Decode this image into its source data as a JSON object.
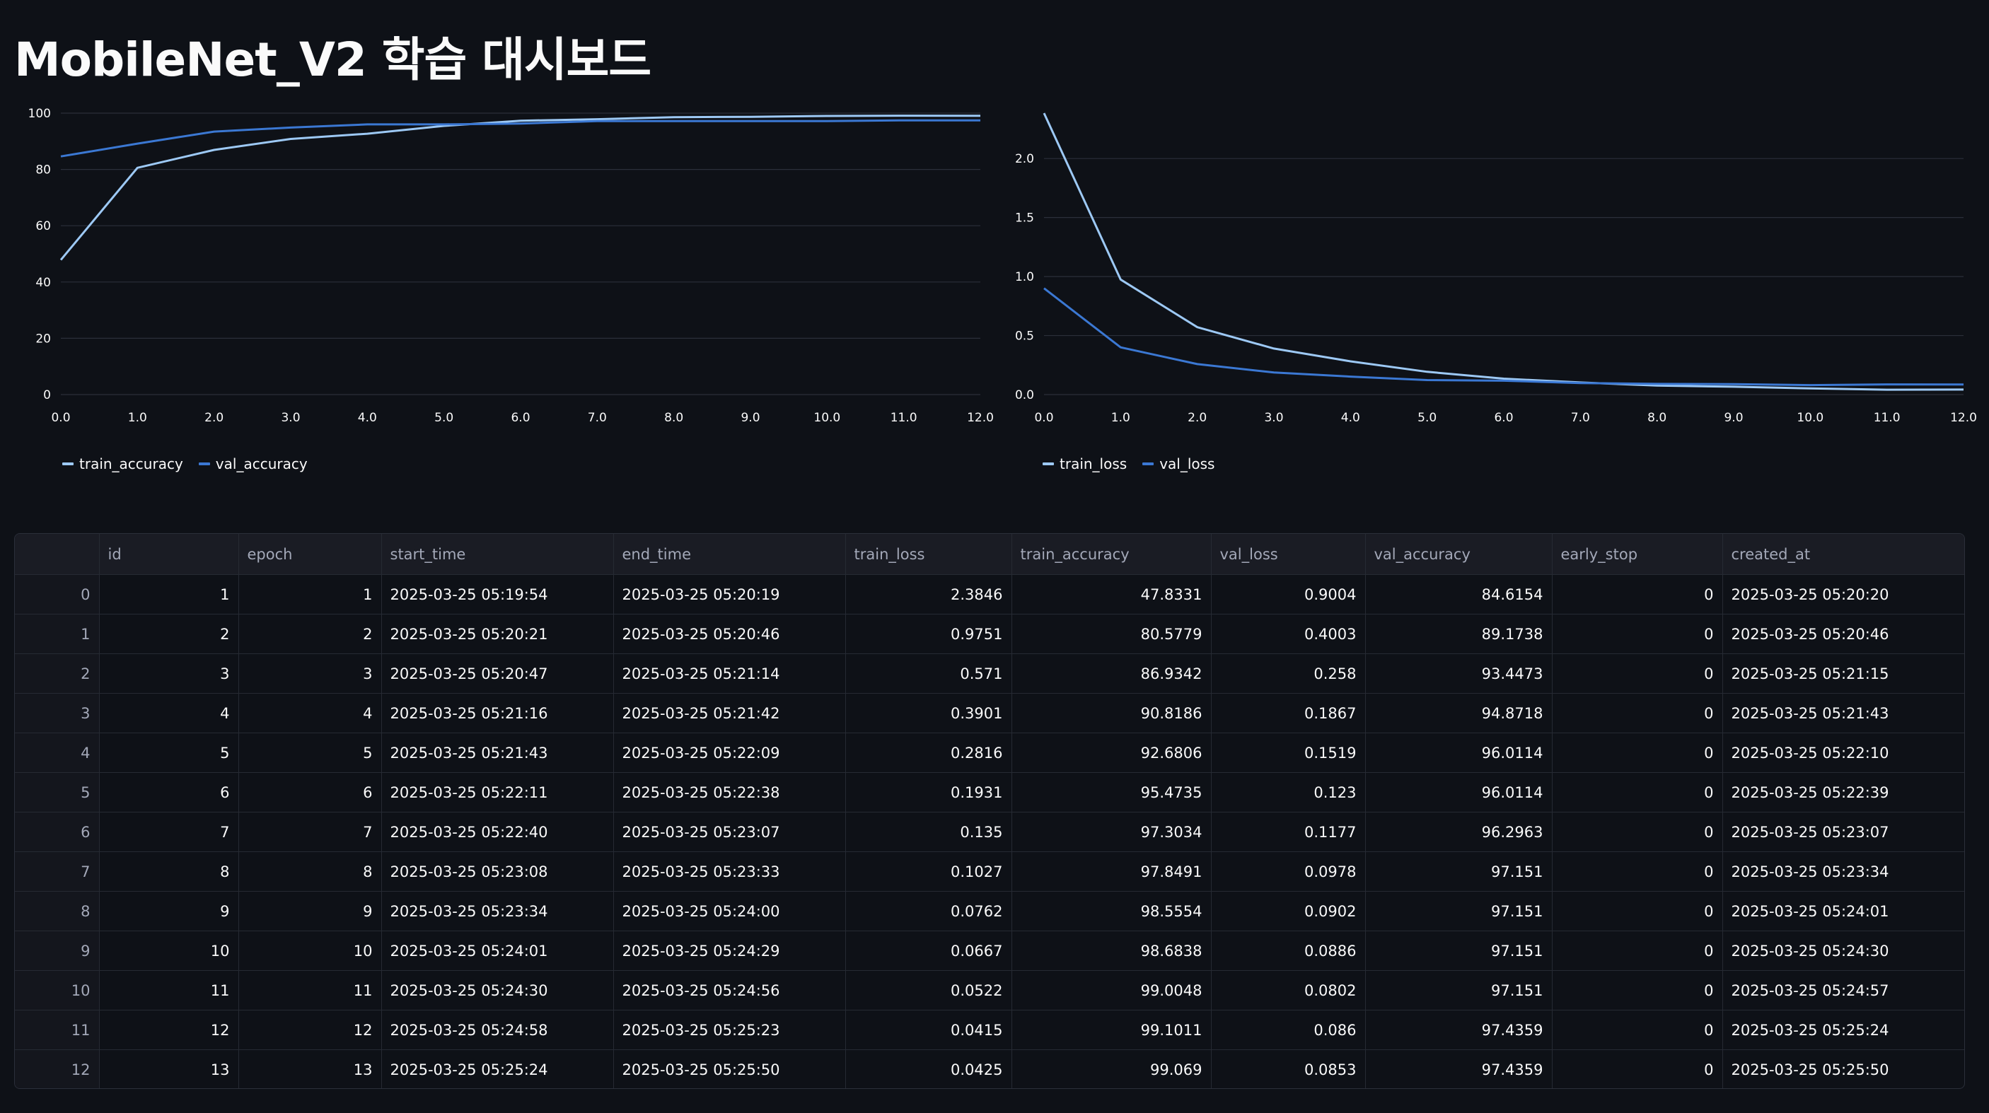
{
  "title": "MobileNet_V2 학습 대시보드",
  "colors": {
    "train": "#9dc9f5",
    "val": "#3b78d3",
    "grid": "#2b2f3a",
    "background": "#0e1117"
  },
  "chart_data": [
    {
      "type": "line",
      "x": [
        0,
        1,
        2,
        3,
        4,
        5,
        6,
        7,
        8,
        9,
        10,
        11,
        12
      ],
      "xticks": [
        "0.0",
        "1.0",
        "2.0",
        "3.0",
        "4.0",
        "5.0",
        "6.0",
        "7.0",
        "8.0",
        "9.0",
        "10.0",
        "11.0",
        "12.0"
      ],
      "yticks": [
        "0",
        "20",
        "40",
        "60",
        "80",
        "100"
      ],
      "ylim": [
        0,
        100
      ],
      "series": [
        {
          "name": "train_accuracy",
          "values": [
            47.8331,
            80.5779,
            86.9342,
            90.8186,
            92.6806,
            95.4735,
            97.3034,
            97.8491,
            98.5554,
            98.6838,
            99.0048,
            99.1011,
            99.069
          ]
        },
        {
          "name": "val_accuracy",
          "values": [
            84.6154,
            89.1738,
            93.4473,
            94.8718,
            96.0114,
            96.0114,
            96.2963,
            97.151,
            97.151,
            97.151,
            97.151,
            97.4359,
            97.4359
          ]
        }
      ],
      "legend": "bottom-left",
      "grid": true
    },
    {
      "type": "line",
      "x": [
        0,
        1,
        2,
        3,
        4,
        5,
        6,
        7,
        8,
        9,
        10,
        11,
        12
      ],
      "xticks": [
        "0.0",
        "1.0",
        "2.0",
        "3.0",
        "4.0",
        "5.0",
        "6.0",
        "7.0",
        "8.0",
        "9.0",
        "10.0",
        "11.0",
        "12.0"
      ],
      "yticks": [
        "0.0",
        "0.5",
        "1.0",
        "1.5",
        "2.0"
      ],
      "ylim": [
        0,
        2.3846
      ],
      "series": [
        {
          "name": "train_loss",
          "values": [
            2.3846,
            0.9751,
            0.571,
            0.3901,
            0.2816,
            0.1931,
            0.135,
            0.1027,
            0.0762,
            0.0667,
            0.0522,
            0.0415,
            0.0425
          ]
        },
        {
          "name": "val_loss",
          "values": [
            0.9004,
            0.4003,
            0.258,
            0.1867,
            0.1519,
            0.123,
            0.1177,
            0.0978,
            0.0902,
            0.0886,
            0.0802,
            0.086,
            0.0853
          ]
        }
      ],
      "legend": "bottom-left",
      "grid": true
    }
  ],
  "table": {
    "columns": [
      "",
      "id",
      "epoch",
      "start_time",
      "end_time",
      "train_loss",
      "train_accuracy",
      "val_loss",
      "val_accuracy",
      "early_stop",
      "created_at"
    ],
    "rows": [
      [
        "0",
        "1",
        "1",
        "2025-03-25 05:19:54",
        "2025-03-25 05:20:19",
        "2.3846",
        "47.8331",
        "0.9004",
        "84.6154",
        "0",
        "2025-03-25 05:20:20"
      ],
      [
        "1",
        "2",
        "2",
        "2025-03-25 05:20:21",
        "2025-03-25 05:20:46",
        "0.9751",
        "80.5779",
        "0.4003",
        "89.1738",
        "0",
        "2025-03-25 05:20:46"
      ],
      [
        "2",
        "3",
        "3",
        "2025-03-25 05:20:47",
        "2025-03-25 05:21:14",
        "0.571",
        "86.9342",
        "0.258",
        "93.4473",
        "0",
        "2025-03-25 05:21:15"
      ],
      [
        "3",
        "4",
        "4",
        "2025-03-25 05:21:16",
        "2025-03-25 05:21:42",
        "0.3901",
        "90.8186",
        "0.1867",
        "94.8718",
        "0",
        "2025-03-25 05:21:43"
      ],
      [
        "4",
        "5",
        "5",
        "2025-03-25 05:21:43",
        "2025-03-25 05:22:09",
        "0.2816",
        "92.6806",
        "0.1519",
        "96.0114",
        "0",
        "2025-03-25 05:22:10"
      ],
      [
        "5",
        "6",
        "6",
        "2025-03-25 05:22:11",
        "2025-03-25 05:22:38",
        "0.1931",
        "95.4735",
        "0.123",
        "96.0114",
        "0",
        "2025-03-25 05:22:39"
      ],
      [
        "6",
        "7",
        "7",
        "2025-03-25 05:22:40",
        "2025-03-25 05:23:07",
        "0.135",
        "97.3034",
        "0.1177",
        "96.2963",
        "0",
        "2025-03-25 05:23:07"
      ],
      [
        "7",
        "8",
        "8",
        "2025-03-25 05:23:08",
        "2025-03-25 05:23:33",
        "0.1027",
        "97.8491",
        "0.0978",
        "97.151",
        "0",
        "2025-03-25 05:23:34"
      ],
      [
        "8",
        "9",
        "9",
        "2025-03-25 05:23:34",
        "2025-03-25 05:24:00",
        "0.0762",
        "98.5554",
        "0.0902",
        "97.151",
        "0",
        "2025-03-25 05:24:01"
      ],
      [
        "9",
        "10",
        "10",
        "2025-03-25 05:24:01",
        "2025-03-25 05:24:29",
        "0.0667",
        "98.6838",
        "0.0886",
        "97.151",
        "0",
        "2025-03-25 05:24:30"
      ],
      [
        "10",
        "11",
        "11",
        "2025-03-25 05:24:30",
        "2025-03-25 05:24:56",
        "0.0522",
        "99.0048",
        "0.0802",
        "97.151",
        "0",
        "2025-03-25 05:24:57"
      ],
      [
        "11",
        "12",
        "12",
        "2025-03-25 05:24:58",
        "2025-03-25 05:25:23",
        "0.0415",
        "99.1011",
        "0.086",
        "97.4359",
        "0",
        "2025-03-25 05:25:24"
      ],
      [
        "12",
        "13",
        "13",
        "2025-03-25 05:25:24",
        "2025-03-25 05:25:50",
        "0.0425",
        "99.069",
        "0.0853",
        "97.4359",
        "0",
        "2025-03-25 05:25:50"
      ]
    ]
  }
}
